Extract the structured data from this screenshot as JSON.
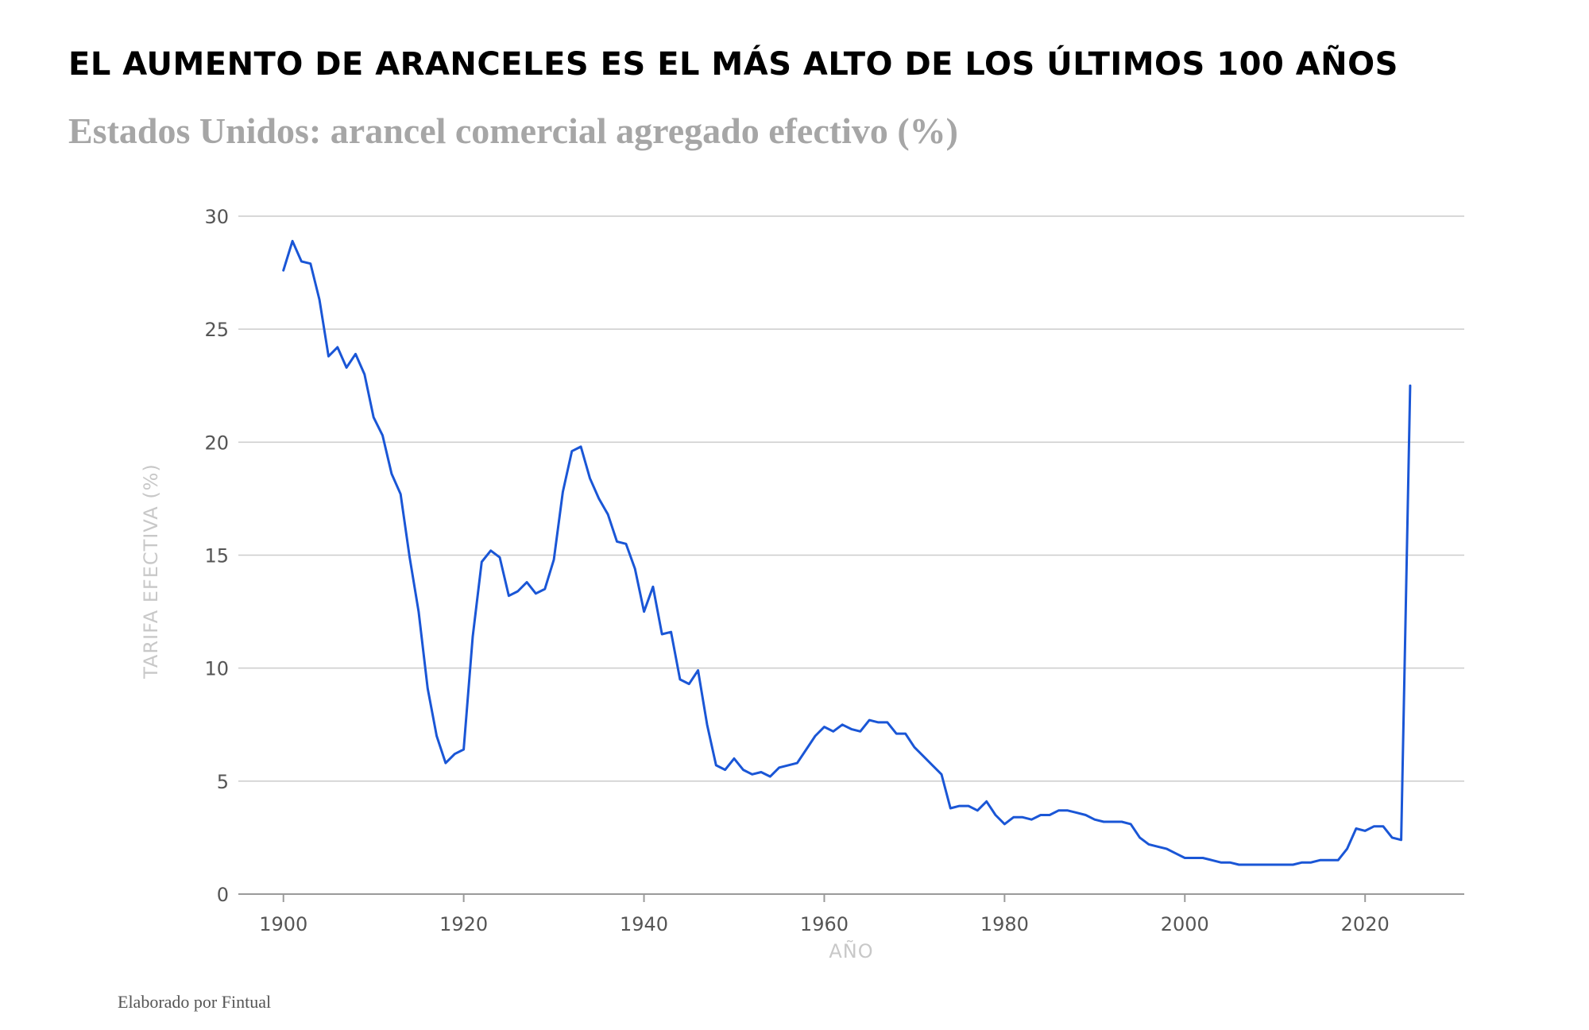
{
  "header": {
    "title": "EL AUMENTO DE ARANCELES ES EL MÁS ALTO DE LOS ÚLTIMOS 100 AÑOS",
    "subtitle": "Estados Unidos: arancel comercial agregado efectivo (%)"
  },
  "footer": {
    "source": "Elaborado por Fintual"
  },
  "colors": {
    "line": "#1a56d6",
    "grid": "#cccccc",
    "axis": "#9a9a9a"
  },
  "chart_data": {
    "type": "line",
    "title": "EL AUMENTO DE ARANCELES ES EL MÁS ALTO DE LOS ÚLTIMOS 100 AÑOS",
    "subtitle": "Estados Unidos: arancel comercial agregado efectivo (%)",
    "xlabel": "AÑO",
    "ylabel": "TARIFA EFECTIVA (%)",
    "xlim": [
      1895,
      2031
    ],
    "ylim": [
      0,
      30
    ],
    "xticks": [
      1900,
      1920,
      1940,
      1960,
      1980,
      2000,
      2020
    ],
    "yticks": [
      0,
      5,
      10,
      15,
      20,
      25,
      30
    ],
    "grid": true,
    "series": [
      {
        "name": "Tarifa efectiva (%)",
        "x": [
          1900,
          1901,
          1902,
          1903,
          1904,
          1905,
          1906,
          1907,
          1908,
          1909,
          1910,
          1911,
          1912,
          1913,
          1914,
          1915,
          1916,
          1917,
          1918,
          1919,
          1920,
          1921,
          1922,
          1923,
          1924,
          1925,
          1926,
          1927,
          1928,
          1929,
          1930,
          1931,
          1932,
          1933,
          1934,
          1935,
          1936,
          1937,
          1938,
          1939,
          1940,
          1941,
          1942,
          1943,
          1944,
          1945,
          1946,
          1947,
          1948,
          1949,
          1950,
          1951,
          1952,
          1953,
          1954,
          1955,
          1956,
          1957,
          1958,
          1959,
          1960,
          1961,
          1962,
          1963,
          1964,
          1965,
          1966,
          1967,
          1968,
          1969,
          1970,
          1971,
          1972,
          1973,
          1974,
          1975,
          1976,
          1977,
          1978,
          1979,
          1980,
          1981,
          1982,
          1983,
          1984,
          1985,
          1986,
          1987,
          1988,
          1989,
          1990,
          1991,
          1992,
          1993,
          1994,
          1995,
          1996,
          1997,
          1998,
          1999,
          2000,
          2001,
          2002,
          2003,
          2004,
          2005,
          2006,
          2007,
          2008,
          2009,
          2010,
          2011,
          2012,
          2013,
          2014,
          2015,
          2016,
          2017,
          2018,
          2019,
          2020,
          2021,
          2022,
          2023,
          2024,
          2025
        ],
        "y": [
          27.6,
          28.9,
          28.0,
          27.9,
          26.3,
          23.8,
          24.2,
          23.3,
          23.9,
          23.0,
          21.1,
          20.3,
          18.6,
          17.7,
          14.9,
          12.5,
          9.1,
          7.0,
          5.8,
          6.2,
          6.4,
          11.4,
          14.7,
          15.2,
          14.9,
          13.2,
          13.4,
          13.8,
          13.3,
          13.5,
          14.8,
          17.8,
          19.6,
          19.8,
          18.4,
          17.5,
          16.8,
          15.6,
          15.5,
          14.4,
          12.5,
          13.6,
          11.5,
          11.6,
          9.5,
          9.3,
          9.9,
          7.5,
          5.7,
          5.5,
          6.0,
          5.5,
          5.3,
          5.4,
          5.2,
          5.6,
          5.7,
          5.8,
          6.4,
          7.0,
          7.4,
          7.2,
          7.5,
          7.3,
          7.2,
          7.7,
          7.6,
          7.6,
          7.1,
          7.1,
          6.5,
          6.1,
          5.7,
          5.3,
          3.8,
          3.9,
          3.9,
          3.7,
          4.1,
          3.5,
          3.1,
          3.4,
          3.4,
          3.3,
          3.5,
          3.5,
          3.7,
          3.7,
          3.6,
          3.5,
          3.3,
          3.2,
          3.2,
          3.2,
          3.1,
          2.5,
          2.2,
          2.1,
          2.0,
          1.8,
          1.6,
          1.6,
          1.6,
          1.5,
          1.4,
          1.4,
          1.3,
          1.3,
          1.3,
          1.3,
          1.3,
          1.3,
          1.3,
          1.4,
          1.4,
          1.5,
          1.5,
          1.5,
          2.0,
          2.9,
          2.8,
          3.0,
          3.0,
          2.5,
          2.4,
          22.5
        ]
      }
    ]
  }
}
